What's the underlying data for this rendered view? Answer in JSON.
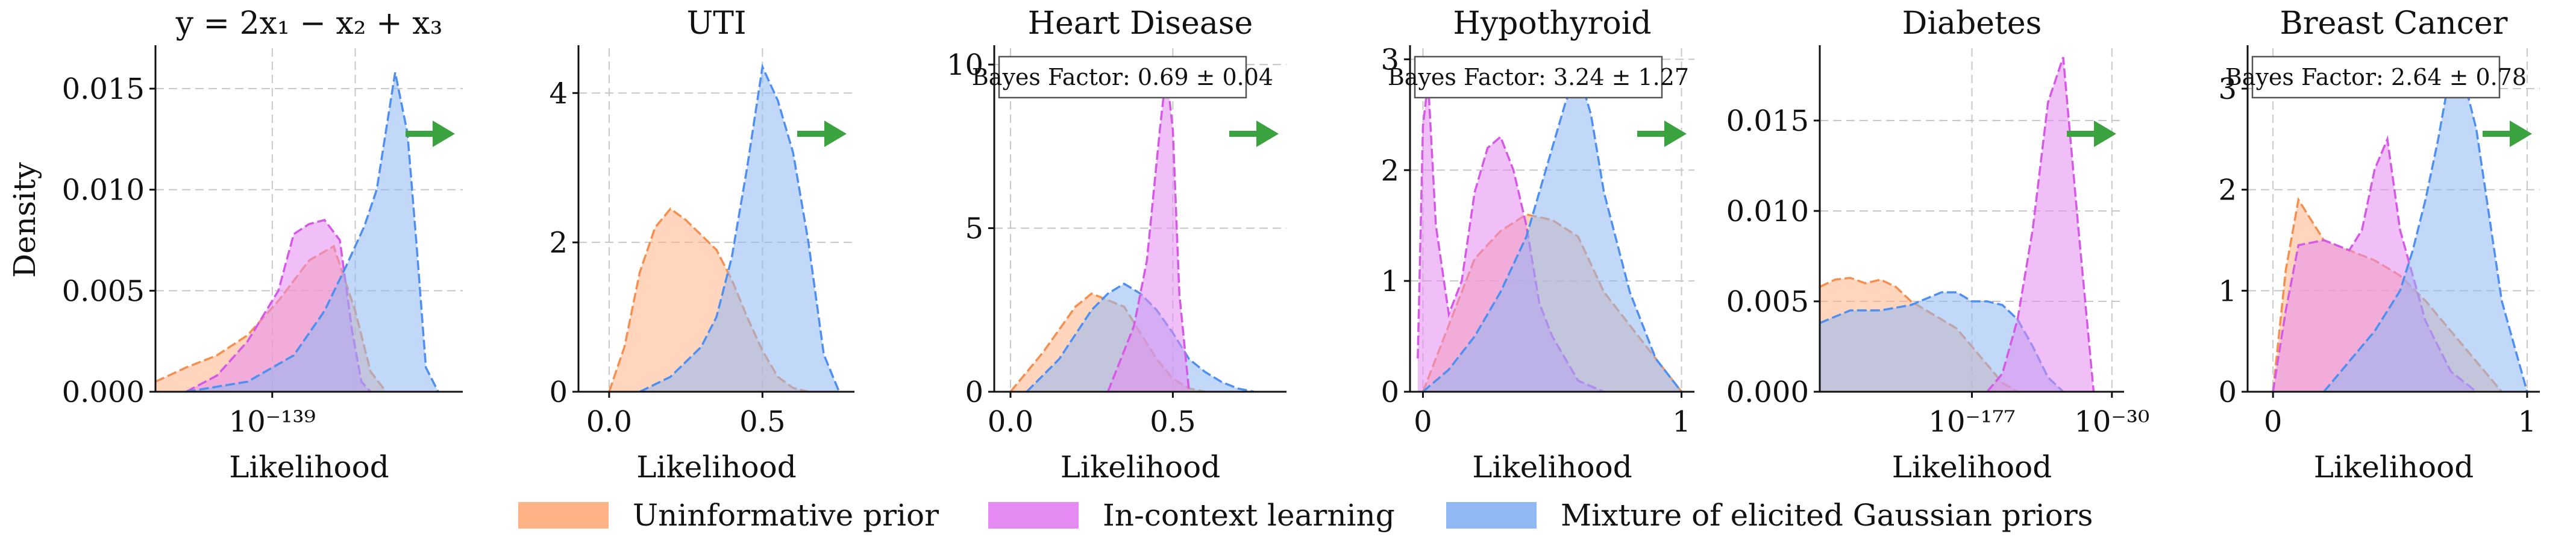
{
  "colors": {
    "uninformative": "#f58f4f",
    "icl": "#d45ae6",
    "mixture": "#4f8ff0",
    "uninformative_fill": "#ffb286",
    "icl_fill": "#e58af2",
    "mixture_fill": "#8fb8f4",
    "arrow": "#3aa33f",
    "grid": "#c8c8c8"
  },
  "legend": {
    "uninformative": "Uninformative prior",
    "icl": "In-context learning",
    "mixture": "Mixture of elicited Gaussian priors"
  },
  "chart_data": [
    {
      "type": "area",
      "title": "y = 2x₁ − x₂ + x₃",
      "xlabel": "Likelihood",
      "ylabel": "Density",
      "xlim": [
        0,
        1
      ],
      "ylim": [
        0,
        0.017
      ],
      "xticks": [
        {
          "v": 0.38,
          "label": "10⁻¹³⁹"
        }
      ],
      "yticks": [
        {
          "v": 0,
          "label": "0.000"
        },
        {
          "v": 0.005,
          "label": "0.005"
        },
        {
          "v": 0.01,
          "label": "0.010"
        },
        {
          "v": 0.015,
          "label": "0.015"
        }
      ],
      "vgrid": [
        0.38,
        0.65
      ],
      "bayes_factor": "",
      "series": [
        {
          "key": "uninformative",
          "x": [
            0,
            0.1,
            0.2,
            0.3,
            0.4,
            0.5,
            0.58,
            0.65,
            0.7,
            0.75
          ],
          "y": [
            0.0005,
            0.0012,
            0.0018,
            0.0028,
            0.0045,
            0.0065,
            0.0072,
            0.004,
            0.001,
            0
          ]
        },
        {
          "key": "icl",
          "x": [
            0.1,
            0.2,
            0.3,
            0.4,
            0.45,
            0.5,
            0.55,
            0.6,
            0.64,
            0.67,
            0.7
          ],
          "y": [
            0,
            0.0008,
            0.0025,
            0.005,
            0.0078,
            0.0083,
            0.0085,
            0.0075,
            0.003,
            0.0005,
            0
          ]
        },
        {
          "key": "mixture",
          "x": [
            0.1,
            0.3,
            0.45,
            0.55,
            0.62,
            0.68,
            0.72,
            0.78,
            0.82,
            0.85,
            0.88,
            0.92
          ],
          "y": [
            0,
            0.0005,
            0.0018,
            0.004,
            0.0062,
            0.0082,
            0.01,
            0.0158,
            0.0128,
            0.0072,
            0.0012,
            0
          ]
        }
      ]
    },
    {
      "type": "area",
      "title": "UTI",
      "xlabel": "Likelihood",
      "ylabel": "",
      "xlim": [
        -0.1,
        0.8
      ],
      "ylim": [
        0,
        4.6
      ],
      "xticks": [
        {
          "v": 0,
          "label": "0.0"
        },
        {
          "v": 0.5,
          "label": "0.5"
        }
      ],
      "yticks": [
        {
          "v": 0,
          "label": "0"
        },
        {
          "v": 2,
          "label": "2"
        },
        {
          "v": 4,
          "label": "4"
        }
      ],
      "vgrid": [
        0,
        0.5
      ],
      "bayes_factor": "",
      "series": [
        {
          "key": "uninformative",
          "x": [
            0,
            0.05,
            0.1,
            0.15,
            0.2,
            0.25,
            0.3,
            0.35,
            0.4,
            0.45,
            0.5,
            0.55,
            0.6,
            0.65
          ],
          "y": [
            0,
            0.6,
            1.6,
            2.2,
            2.45,
            2.3,
            2.1,
            1.9,
            1.5,
            1.0,
            0.55,
            0.2,
            0.05,
            0
          ]
        },
        {
          "key": "mixture",
          "x": [
            0.1,
            0.2,
            0.3,
            0.35,
            0.4,
            0.45,
            0.5,
            0.55,
            0.6,
            0.65,
            0.7,
            0.75
          ],
          "y": [
            0,
            0.2,
            0.6,
            1.0,
            1.8,
            3.0,
            4.35,
            3.9,
            3.2,
            2.0,
            0.5,
            0
          ]
        }
      ]
    },
    {
      "type": "area",
      "title": "Heart Disease",
      "xlabel": "Likelihood",
      "ylabel": "",
      "xlim": [
        -0.05,
        0.85
      ],
      "ylim": [
        0,
        10.5
      ],
      "xticks": [
        {
          "v": 0,
          "label": "0.0"
        },
        {
          "v": 0.5,
          "label": "0.5"
        }
      ],
      "yticks": [
        {
          "v": 0,
          "label": "0"
        },
        {
          "v": 5,
          "label": "5"
        },
        {
          "v": 10,
          "label": "10"
        }
      ],
      "vgrid": [
        0,
        0.5
      ],
      "bayes_factor": "Bayes Factor: 0.69 ± 0.04",
      "series": [
        {
          "key": "uninformative",
          "x": [
            0,
            0.1,
            0.2,
            0.25,
            0.3,
            0.35,
            0.4,
            0.45,
            0.5,
            0.55,
            0.6
          ],
          "y": [
            0,
            1.2,
            2.6,
            3.0,
            2.8,
            2.6,
            1.8,
            1.0,
            0.4,
            0.1,
            0
          ]
        },
        {
          "key": "mixture",
          "x": [
            0.05,
            0.15,
            0.25,
            0.3,
            0.35,
            0.4,
            0.45,
            0.5,
            0.55,
            0.6,
            0.65,
            0.7,
            0.75
          ],
          "y": [
            0,
            1.0,
            2.5,
            3.0,
            3.3,
            3.0,
            2.5,
            1.8,
            1.0,
            0.6,
            0.3,
            0.1,
            0
          ]
        },
        {
          "key": "icl",
          "x": [
            0.3,
            0.38,
            0.42,
            0.46,
            0.48,
            0.5,
            0.52,
            0.55
          ],
          "y": [
            0,
            2.0,
            4.0,
            8.0,
            9.8,
            8.0,
            3.0,
            0
          ]
        }
      ]
    },
    {
      "type": "area",
      "title": "Hypothyroid",
      "xlabel": "Likelihood",
      "ylabel": "",
      "xlim": [
        -0.05,
        1.05
      ],
      "ylim": [
        0,
        3.1
      ],
      "xticks": [
        {
          "v": 0,
          "label": "0"
        },
        {
          "v": 1,
          "label": "1"
        }
      ],
      "yticks": [
        {
          "v": 0,
          "label": "0"
        },
        {
          "v": 1,
          "label": "1"
        },
        {
          "v": 2,
          "label": "2"
        },
        {
          "v": 3,
          "label": "3"
        }
      ],
      "vgrid": [
        0,
        1
      ],
      "bayes_factor": "Bayes Factor: 3.24 ± 1.27",
      "series": [
        {
          "key": "uninformative",
          "x": [
            0,
            0.1,
            0.2,
            0.3,
            0.4,
            0.5,
            0.6,
            0.7,
            0.8,
            0.9,
            1
          ],
          "y": [
            0,
            0.6,
            1.2,
            1.45,
            1.6,
            1.55,
            1.4,
            0.9,
            0.6,
            0.3,
            0
          ]
        },
        {
          "key": "icl",
          "x": [
            -0.02,
            0,
            0.02,
            0.05,
            0.1,
            0.15,
            0.2,
            0.25,
            0.3,
            0.35,
            0.4,
            0.45,
            0.5,
            0.6,
            0.7
          ],
          "y": [
            0.3,
            2.4,
            2.8,
            1.5,
            0.7,
            1.0,
            1.8,
            2.2,
            2.3,
            2.0,
            1.5,
            0.8,
            0.5,
            0.1,
            0
          ]
        },
        {
          "key": "mixture",
          "x": [
            0,
            0.1,
            0.2,
            0.3,
            0.4,
            0.5,
            0.55,
            0.6,
            0.65,
            0.7,
            0.8,
            0.9,
            1
          ],
          "y": [
            0,
            0.2,
            0.5,
            0.9,
            1.4,
            2.2,
            2.6,
            2.9,
            2.5,
            1.8,
            0.9,
            0.3,
            0
          ]
        }
      ]
    },
    {
      "type": "area",
      "title": "Diabetes",
      "xlabel": "Likelihood",
      "ylabel": "",
      "xlim": [
        0,
        1
      ],
      "ylim": [
        0,
        0.019
      ],
      "xticks": [
        {
          "v": 0.5,
          "label": "10⁻¹⁷⁷"
        },
        {
          "v": 0.96,
          "label": "10⁻³⁰"
        }
      ],
      "yticks": [
        {
          "v": 0,
          "label": "0.000"
        },
        {
          "v": 0.005,
          "label": "0.005"
        },
        {
          "v": 0.01,
          "label": "0.010"
        },
        {
          "v": 0.015,
          "label": "0.015"
        }
      ],
      "vgrid": [
        0.5,
        0.96
      ],
      "bayes_factor": "",
      "series": [
        {
          "key": "uninformative",
          "x": [
            0,
            0.05,
            0.1,
            0.15,
            0.2,
            0.25,
            0.3,
            0.35,
            0.4,
            0.45,
            0.5,
            0.55,
            0.6,
            0.65
          ],
          "y": [
            0.0058,
            0.0062,
            0.0063,
            0.006,
            0.0062,
            0.0058,
            0.005,
            0.0045,
            0.004,
            0.0035,
            0.0025,
            0.0015,
            0.0005,
            0
          ]
        },
        {
          "key": "mixture",
          "x": [
            0,
            0.1,
            0.2,
            0.3,
            0.4,
            0.45,
            0.5,
            0.55,
            0.6,
            0.65,
            0.7,
            0.75,
            0.8
          ],
          "y": [
            0.0038,
            0.0045,
            0.0045,
            0.0048,
            0.0055,
            0.0055,
            0.005,
            0.005,
            0.0048,
            0.004,
            0.0025,
            0.0008,
            0
          ]
        },
        {
          "key": "icl",
          "x": [
            0.55,
            0.6,
            0.65,
            0.7,
            0.75,
            0.8,
            0.85,
            0.9
          ],
          "y": [
            0,
            0.001,
            0.004,
            0.009,
            0.016,
            0.0185,
            0.009,
            0
          ]
        }
      ]
    },
    {
      "type": "area",
      "title": "Breast Cancer",
      "xlabel": "Likelihood",
      "ylabel": "",
      "xlim": [
        -0.1,
        1.05
      ],
      "ylim": [
        0,
        3.4
      ],
      "xticks": [
        {
          "v": 0,
          "label": "0"
        },
        {
          "v": 1,
          "label": "1"
        }
      ],
      "yticks": [
        {
          "v": 0,
          "label": "0"
        },
        {
          "v": 1,
          "label": "1"
        },
        {
          "v": 2,
          "label": "2"
        },
        {
          "v": 3,
          "label": "3"
        }
      ],
      "vgrid": [
        0,
        1
      ],
      "bayes_factor": "Bayes Factor: 2.64 ± 0.78",
      "series": [
        {
          "key": "uninformative",
          "x": [
            0,
            0.05,
            0.1,
            0.15,
            0.2,
            0.3,
            0.4,
            0.5,
            0.6,
            0.7,
            0.8,
            0.9
          ],
          "y": [
            0,
            1.2,
            1.9,
            1.7,
            1.5,
            1.4,
            1.3,
            1.15,
            0.9,
            0.6,
            0.3,
            0
          ]
        },
        {
          "key": "icl",
          "x": [
            0,
            0.05,
            0.1,
            0.2,
            0.3,
            0.35,
            0.4,
            0.45,
            0.5,
            0.6,
            0.7,
            0.8
          ],
          "y": [
            0,
            0.8,
            1.45,
            1.5,
            1.4,
            1.6,
            2.2,
            2.5,
            1.6,
            0.7,
            0.2,
            0
          ]
        },
        {
          "key": "mixture",
          "x": [
            0.2,
            0.3,
            0.4,
            0.5,
            0.55,
            0.6,
            0.65,
            0.7,
            0.75,
            0.8,
            0.9,
            1
          ],
          "y": [
            0,
            0.3,
            0.6,
            1.0,
            1.4,
            1.9,
            2.5,
            3.2,
            3.1,
            2.6,
            0.9,
            0
          ]
        }
      ]
    }
  ]
}
